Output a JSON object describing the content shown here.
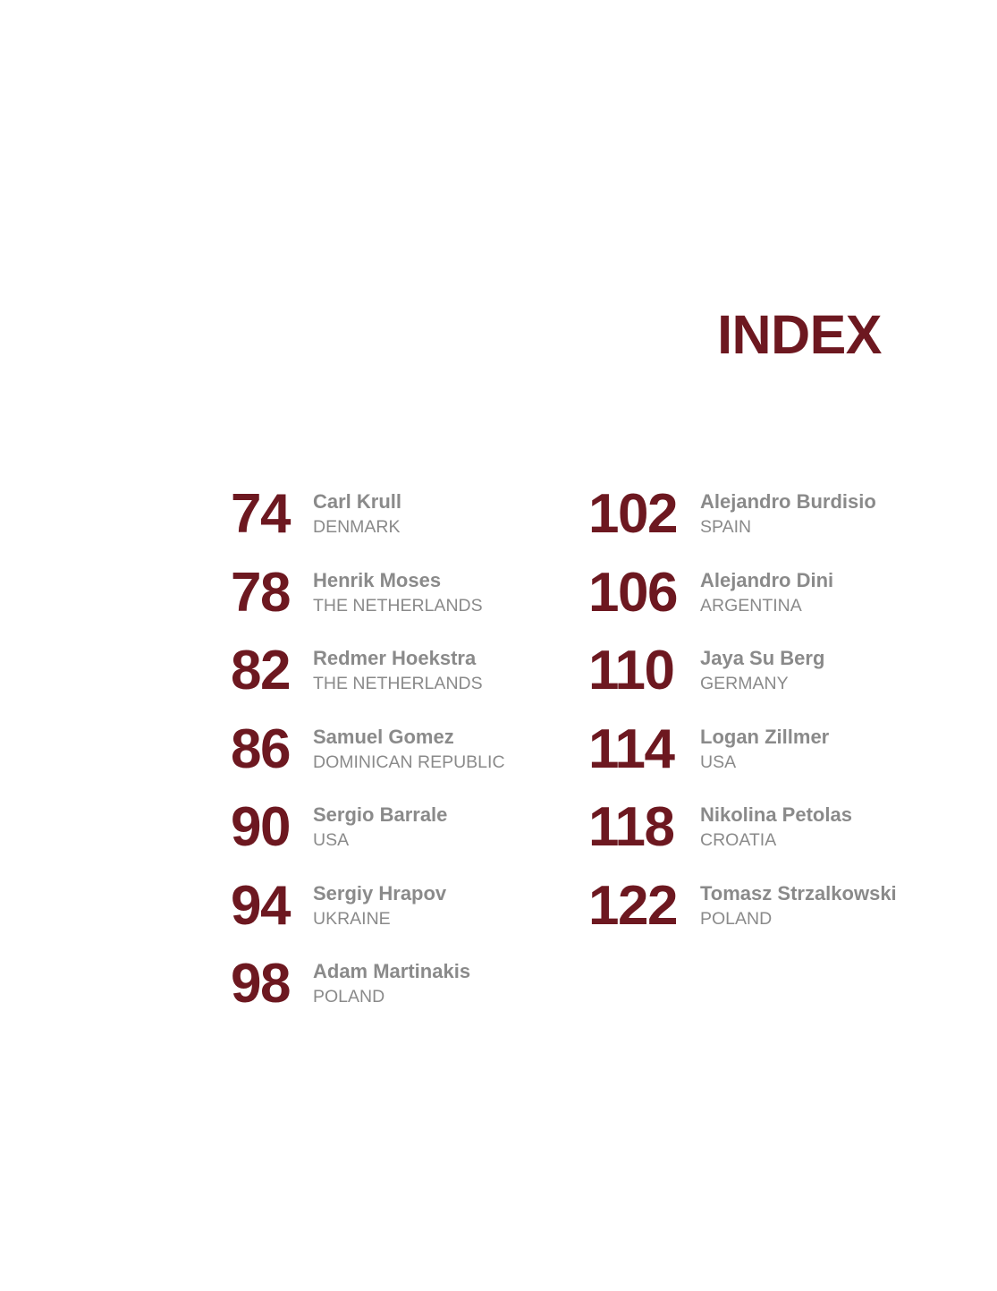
{
  "index": {
    "title": "INDEX",
    "left_column": [
      {
        "page": "74",
        "name": "Carl Krull",
        "country": "DENMARK"
      },
      {
        "page": "78",
        "name": "Henrik Moses",
        "country": "THE NETHERLANDS"
      },
      {
        "page": "82",
        "name": "Redmer Hoekstra",
        "country": "THE NETHERLANDS"
      },
      {
        "page": "86",
        "name": "Samuel Gomez",
        "country": "DOMINICAN REPUBLIC"
      },
      {
        "page": "90",
        "name": "Sergio Barrale",
        "country": "USA"
      },
      {
        "page": "94",
        "name": "Sergiy Hrapov",
        "country": "UKRAINE"
      },
      {
        "page": "98",
        "name": "Adam Martinakis",
        "country": "POLAND"
      }
    ],
    "right_column": [
      {
        "page": "102",
        "name": "Alejandro Burdisio",
        "country": "SPAIN"
      },
      {
        "page": "106",
        "name": "Alejandro Dini",
        "country": "ARGENTINA"
      },
      {
        "page": "110",
        "name": "Jaya Su Berg",
        "country": "GERMANY"
      },
      {
        "page": "114",
        "name": "Logan Zillmer",
        "country": "USA"
      },
      {
        "page": "118",
        "name": "Nikolina Petolas",
        "country": "CROATIA"
      },
      {
        "page": "122",
        "name": "Tomasz Strzalkowski",
        "country": "POLAND"
      }
    ]
  },
  "colors": {
    "accent": "#6d1820",
    "text_gray": "#8a8a8a",
    "background": "#ffffff"
  }
}
